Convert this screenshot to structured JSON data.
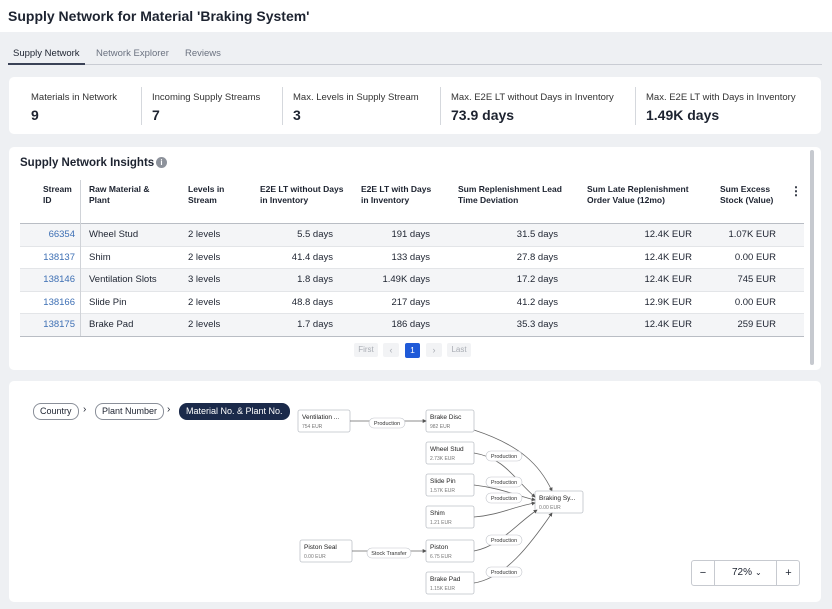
{
  "header": {
    "title": "Supply Network for Material 'Braking System'"
  },
  "tabs": [
    "Supply Network",
    "Network Explorer",
    "Reviews"
  ],
  "kpis": [
    {
      "label": "Materials in Network",
      "value": "9"
    },
    {
      "label": "Incoming Supply Streams",
      "value": "7"
    },
    {
      "label": "Max. Levels in Supply Stream",
      "value": "3"
    },
    {
      "label": "Max. E2E LT without Days in Inventory",
      "value": "73.9 days"
    },
    {
      "label": "Max. E2E LT with Days in Inventory",
      "value": "1.49K days"
    }
  ],
  "insights": {
    "title": "Supply Network Insights",
    "columns": [
      "Stream ID",
      "Raw Material & Plant",
      "Levels in Stream",
      "E2E LT without Days in Inventory",
      "E2E LT with Days in Inventory",
      "Sum Replenishment Lead Time Deviation",
      "Sum Late Replenishment Order Value (12mo)",
      "Sum Excess Stock (Value)"
    ],
    "rows": [
      [
        "66354",
        "Wheel Stud",
        "2 levels",
        "5.5 days",
        "191 days",
        "31.5 days",
        "12.4K EUR",
        "1.07K EUR"
      ],
      [
        "138137",
        "Shim",
        "2 levels",
        "41.4 days",
        "133 days",
        "27.8 days",
        "12.4K EUR",
        "0.00 EUR"
      ],
      [
        "138146",
        "Ventilation Slots",
        "3 levels",
        "1.8 days",
        "1.49K days",
        "17.2 days",
        "12.4K EUR",
        "745 EUR"
      ],
      [
        "138166",
        "Slide Pin",
        "2 levels",
        "48.8 days",
        "217 days",
        "41.2 days",
        "12.9K EUR",
        "0.00 EUR"
      ],
      [
        "138175",
        "Brake Pad",
        "2 levels",
        "1.7 days",
        "186 days",
        "35.3 days",
        "12.4K EUR",
        "259 EUR"
      ]
    ],
    "pagination": {
      "first": "First",
      "page": "1",
      "last": "Last"
    }
  },
  "breadcrumb": [
    "Country",
    "Plant Number",
    "Material No. & Plant No."
  ],
  "graph": {
    "nodes": [
      {
        "label": "Ventilation ...",
        "value": "754 EUR"
      },
      {
        "label": "Brake Disc",
        "value": "982 EUR"
      },
      {
        "label": "Wheel Stud",
        "value": "2.73K EUR"
      },
      {
        "label": "Slide Pin",
        "value": "1.57K EUR"
      },
      {
        "label": "Shim",
        "value": "1.21 EUR"
      },
      {
        "label": "Piston Seal",
        "value": "0.00 EUR"
      },
      {
        "label": "Piston",
        "value": "6.75 EUR"
      },
      {
        "label": "Brake Pad",
        "value": "1.15K EUR"
      },
      {
        "label": "Braking Sy...",
        "value": "0.00 EUR"
      }
    ],
    "edges": [
      "Production",
      "Production",
      "Production",
      "Production",
      "Stock Transfer",
      "Production",
      "Production"
    ]
  },
  "zoom": {
    "minus": "−",
    "value": "72%",
    "plus": "+"
  }
}
